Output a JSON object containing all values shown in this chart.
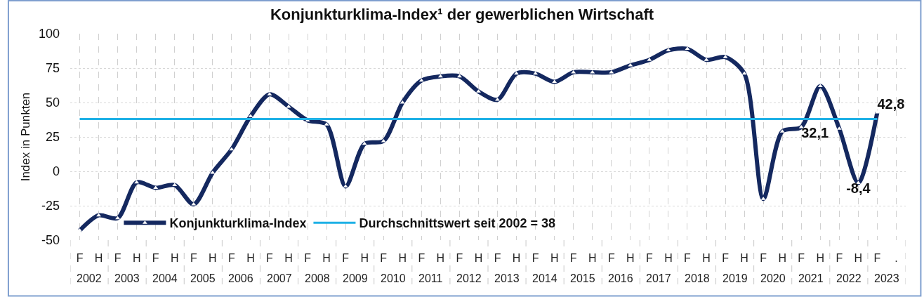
{
  "chart_data": {
    "type": "line",
    "title": "Konjunkturklima-Index¹ der gewerblichen Wirtschaft",
    "ylabel": "Index in Punkten",
    "categories": [
      "F",
      "H",
      "F",
      "H",
      "F",
      "H",
      "F",
      "H",
      "F",
      "H",
      "F",
      "H",
      "F",
      "H",
      "F",
      "H",
      "F",
      "H",
      "F",
      "H",
      "F",
      "H",
      "F",
      "H",
      "F",
      "H",
      "F",
      "H",
      "F",
      "H",
      "F",
      "H",
      "F",
      "H",
      "F",
      "H",
      "F",
      "H",
      "F",
      "H",
      "F",
      "H",
      "F",
      "."
    ],
    "annotations": [
      "2002",
      "2003",
      "2004",
      "2005",
      "2006",
      "2007",
      "2008",
      "2009",
      "2010",
      "2011",
      "2012",
      "2013",
      "2014",
      "2015",
      "2016",
      "2017",
      "2018",
      "2019",
      "2020",
      "2021",
      "2022",
      "2023"
    ],
    "series": [
      {
        "name": "Konjunkturklima-Index",
        "color": "#14285f",
        "values": [
          -43,
          -32,
          -34,
          -8,
          -12,
          -10,
          -24,
          -1,
          16,
          40,
          56,
          47,
          37,
          34,
          -11,
          20,
          22,
          50,
          66,
          69,
          69,
          58,
          52,
          71,
          71,
          65,
          72,
          72,
          72,
          77,
          81,
          88,
          89,
          81,
          83,
          71,
          -20,
          29,
          32.1,
          62,
          31,
          -8.4,
          42.8,
          null
        ],
        "value_labels": [
          null,
          null,
          null,
          null,
          null,
          null,
          null,
          null,
          null,
          null,
          null,
          null,
          null,
          null,
          null,
          null,
          null,
          null,
          null,
          null,
          null,
          null,
          null,
          null,
          null,
          null,
          null,
          null,
          null,
          null,
          null,
          null,
          null,
          null,
          null,
          null,
          null,
          null,
          "32,1",
          null,
          null,
          "-8,4",
          "42,8",
          null
        ]
      }
    ],
    "ref_lines": [
      {
        "axis": "y",
        "value": 38,
        "label": "Durchschnittswert seit 2002 = 38",
        "color": "#1fb1e6",
        "line_style": "solid"
      }
    ],
    "ylim": [
      -50,
      100
    ],
    "yticks": [
      -50,
      -25,
      0,
      25,
      50,
      75,
      100
    ],
    "grid": true,
    "legend": "bottom left",
    "marker": "triangle",
    "line_style": "solid"
  }
}
